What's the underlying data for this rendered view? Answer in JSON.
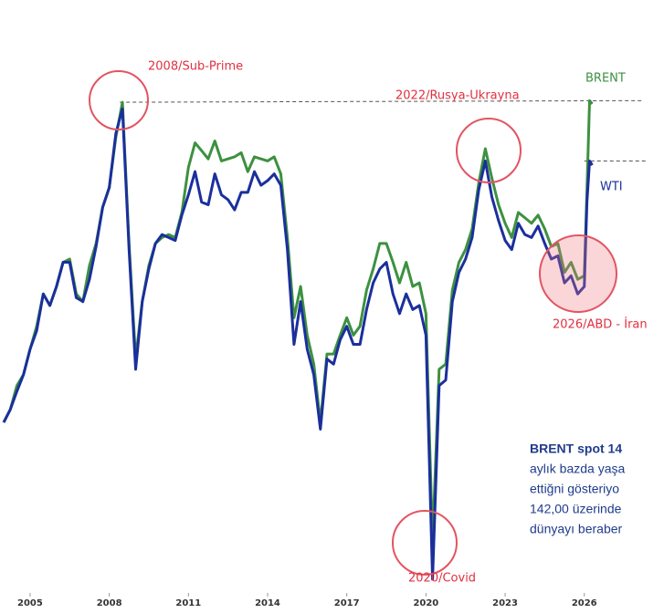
{
  "chart_data": {
    "type": "line",
    "log_scale": true,
    "xlim": [
      2003.86,
      2029.02
    ],
    "xticks": [
      2005,
      2008,
      2011,
      2014,
      2017,
      2020,
      2023,
      2026
    ],
    "ylim": [
      16,
      220
    ],
    "x": [
      2004,
      2004.25,
      2004.5,
      2004.75,
      2005,
      2005.25,
      2005.5,
      2005.75,
      2006,
      2006.25,
      2006.5,
      2006.75,
      2007,
      2007.25,
      2007.5,
      2007.75,
      2008,
      2008.25,
      2008.5,
      2008.75,
      2009,
      2009.25,
      2009.5,
      2009.75,
      2010,
      2010.25,
      2010.5,
      2010.75,
      2011,
      2011.25,
      2011.5,
      2011.75,
      2012,
      2012.25,
      2012.5,
      2012.75,
      2013,
      2013.25,
      2013.5,
      2013.75,
      2014,
      2014.25,
      2014.5,
      2014.75,
      2015,
      2015.25,
      2015.5,
      2015.75,
      2016,
      2016.25,
      2016.5,
      2016.75,
      2017,
      2017.25,
      2017.5,
      2017.75,
      2018,
      2018.25,
      2018.5,
      2018.75,
      2019,
      2019.25,
      2019.5,
      2019.75,
      2020,
      2020.25,
      2020.5,
      2020.75,
      2021,
      2021.25,
      2021.5,
      2021.75,
      2022,
      2022.25,
      2022.5,
      2022.75,
      2023,
      2023.25,
      2023.5,
      2023.75,
      2024,
      2024.25,
      2024.5,
      2024.75,
      2025,
      2025.25,
      2025.5,
      2025.75,
      2026,
      2026.1,
      2026.2,
      2026.3
    ],
    "series": [
      {
        "name": "BRENT",
        "color": "#3d9140",
        "values": [
          34,
          36,
          40,
          42,
          47,
          52,
          60,
          57,
          62,
          69,
          70,
          60,
          58,
          68,
          75,
          88,
          96,
          120,
          140,
          75,
          45,
          58,
          68,
          75,
          77,
          78,
          77,
          86,
          105,
          117,
          113,
          109,
          118,
          108,
          109,
          110,
          112,
          103,
          110,
          109,
          108,
          110,
          102,
          77,
          54,
          62,
          50,
          44,
          34,
          46,
          46,
          50,
          54,
          50,
          52,
          61,
          67,
          75,
          75,
          69,
          63,
          69,
          62,
          63,
          55,
          20,
          43,
          44,
          61,
          69,
          73,
          80,
          98,
          114,
          100,
          89,
          82,
          77,
          86,
          84,
          82,
          85,
          80,
          74,
          75,
          66,
          69,
          64,
          65,
          95,
          141,
          139
        ]
      },
      {
        "name": "WTI",
        "color": "#1b2f9c",
        "values": [
          34,
          36,
          39,
          42,
          47,
          51,
          60,
          57,
          62,
          69,
          69,
          59,
          58,
          64,
          74,
          88,
          96,
          122,
          136,
          73,
          43,
          58,
          67,
          75,
          78,
          77,
          76,
          85,
          93,
          103,
          90,
          89,
          102,
          93,
          91,
          87,
          94,
          94,
          103,
          97,
          99,
          102,
          97,
          73,
          48,
          58,
          47,
          42,
          33,
          45,
          44,
          49,
          52,
          48,
          48,
          56,
          63,
          67,
          69,
          60,
          55,
          60,
          56,
          57,
          50,
          17,
          40,
          41,
          58,
          66,
          70,
          77,
          95,
          108,
          92,
          83,
          76,
          73,
          82,
          78,
          77,
          81,
          75,
          70,
          71,
          63,
          65,
          60,
          62,
          90,
          108,
          106
        ]
      }
    ],
    "reference_lines": [
      {
        "x": [
          2008.4,
          2028.2
        ],
        "values": [
          140,
          141
        ]
      },
      {
        "x": [
          2026.0,
          2028.4
        ],
        "values": [
          108,
          108
        ]
      }
    ],
    "annotations": [
      "2008/Sub-Prime",
      "2022/Rusya-Ukrayna",
      "2020/Covid",
      "2026/ABD - İran"
    ],
    "text_block": [
      "BRENT spot 14",
      "aylık bazda yaşa",
      "ettiğni gösteriyo",
      "142,00 üzerinde",
      "dünyayı beraber"
    ]
  }
}
